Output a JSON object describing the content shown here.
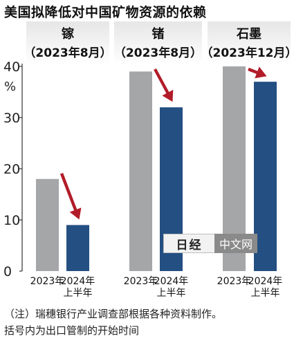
{
  "title": "美国拟降低对中国矿物资源的依赖",
  "colors": {
    "bar_2023": "#a4a6a8",
    "bar_2024": "#234f82",
    "arrow": "#b21c29",
    "panel_top": "#e6e6e6"
  },
  "chart_data": {
    "type": "bar",
    "title": "美国拟降低对中国矿物资源的依赖",
    "unit": "%",
    "ylim": [
      0,
      40
    ],
    "yticks": [
      0,
      10,
      20,
      30,
      40
    ],
    "grid": false,
    "legend": "none",
    "series_labels": [
      [
        "2023年"
      ],
      [
        "2024年",
        "上半年"
      ]
    ],
    "groups": [
      {
        "name": "镓",
        "note": "（2023年8月）",
        "values": [
          18,
          9
        ]
      },
      {
        "name": "锗",
        "note": "（2023年8月）",
        "values": [
          39,
          32
        ]
      },
      {
        "name": "石墨",
        "note": "（2023年12月）",
        "values": [
          40,
          37
        ]
      }
    ]
  },
  "notes": [
    "（注）瑞穗银行产业调查部根据各种资料制作。",
    "括号内为出口管制的开始时间"
  ],
  "watermark": {
    "logo": "日经",
    "text": "中文网"
  }
}
